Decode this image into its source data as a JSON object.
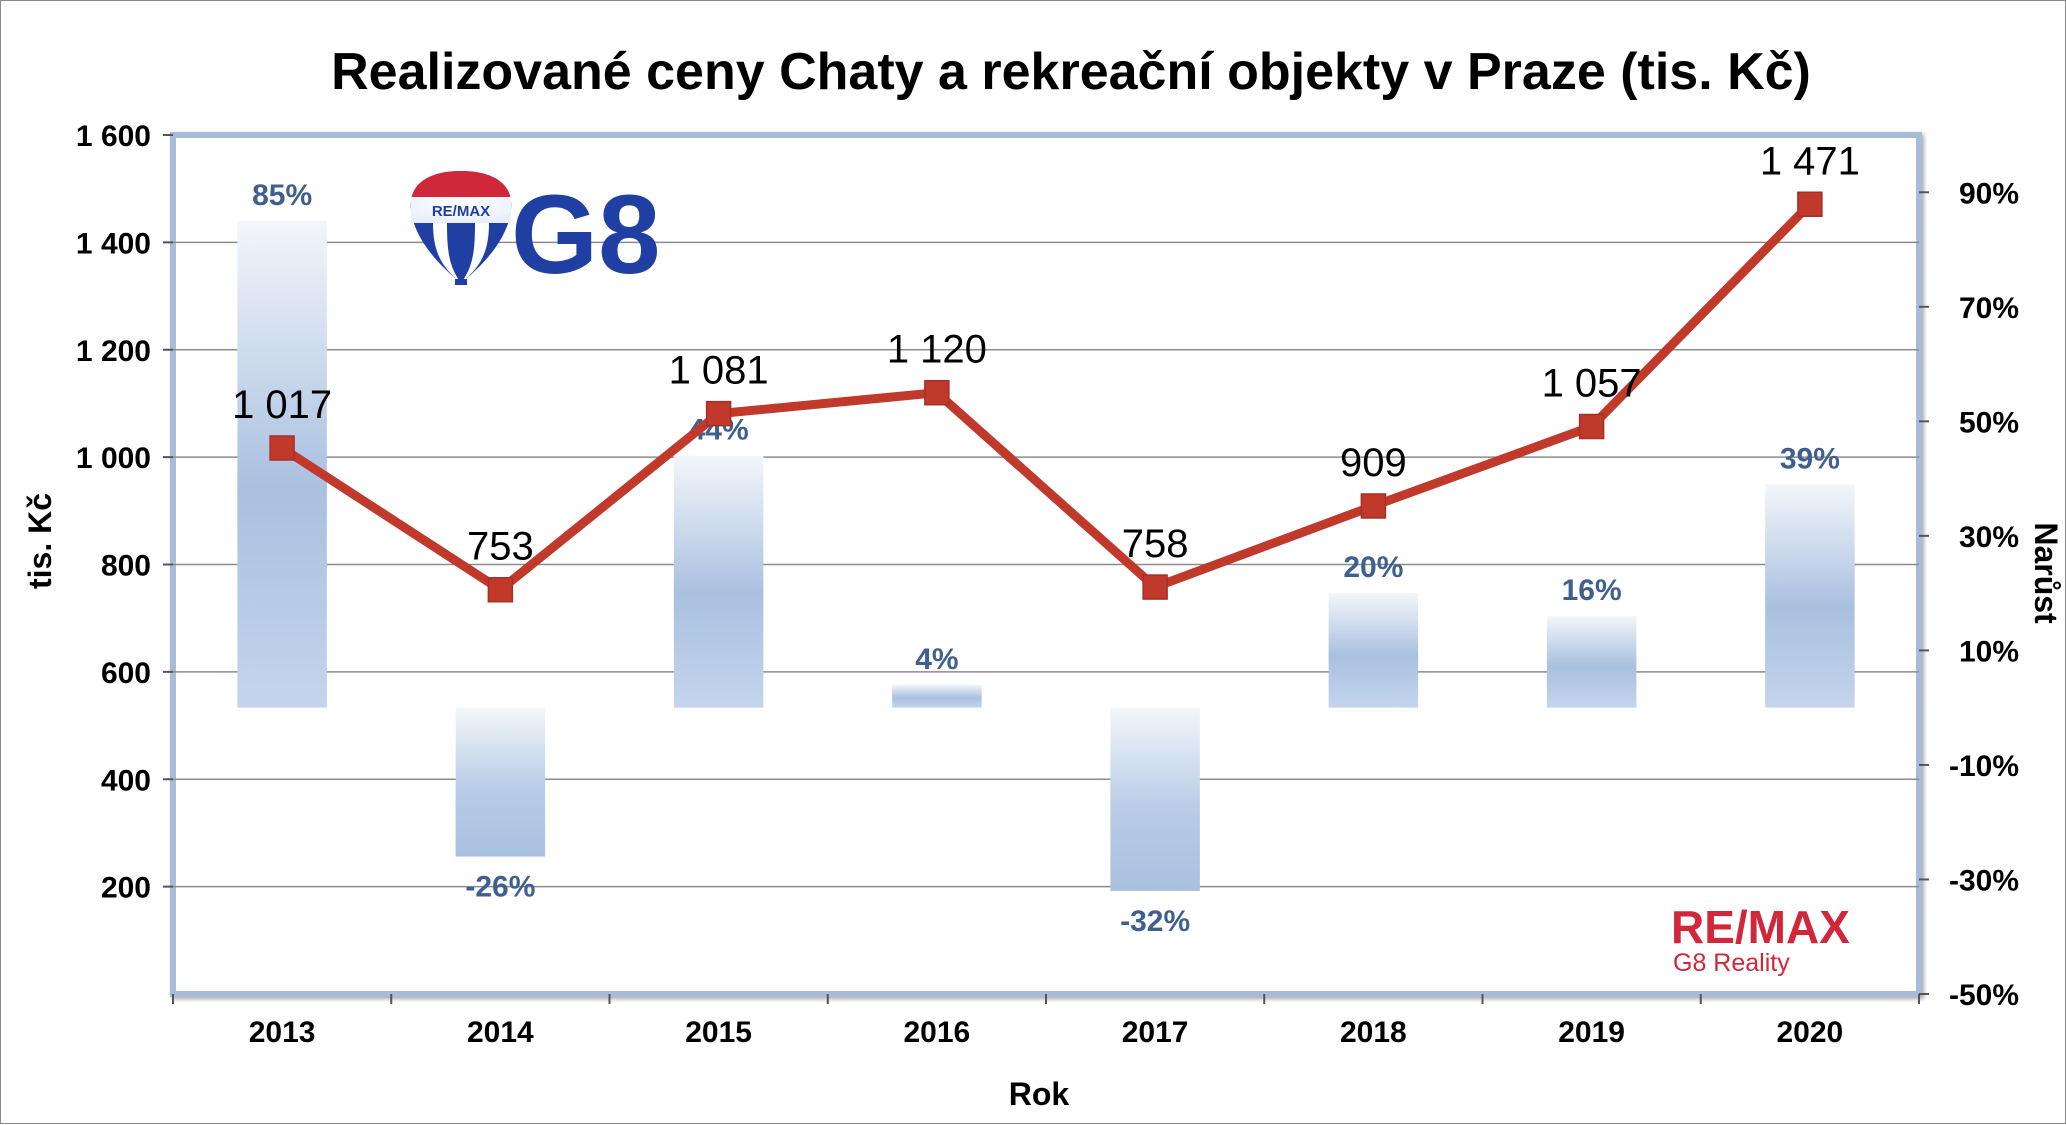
{
  "chart_data": {
    "type": "bar+line",
    "title": "Realizované ceny Chaty a rekreační objekty v Praze (tis. Kč)",
    "xlabel": "Rok",
    "ylabel_left": "tis. Kč",
    "ylabel_right": "Narůst",
    "categories": [
      "2013",
      "2014",
      "2015",
      "2016",
      "2017",
      "2018",
      "2019",
      "2020"
    ],
    "left_axis": {
      "ylim": [
        0,
        1600
      ],
      "ticks": [
        200,
        400,
        600,
        800,
        1000,
        1200,
        1400,
        1600
      ],
      "tick_labels": [
        "200",
        "400",
        "600",
        "800",
        "1 000",
        "1 200",
        "1 400",
        "1 600"
      ]
    },
    "right_axis": {
      "ylim": [
        -50,
        100
      ],
      "ticks": [
        -50,
        -30,
        -10,
        10,
        30,
        50,
        70,
        90
      ],
      "tick_labels": [
        "-50%",
        "-30%",
        "-10%",
        "10%",
        "30%",
        "50%",
        "70%",
        "90%"
      ]
    },
    "series": [
      {
        "type": "line",
        "axis": "left",
        "values": [
          1017,
          753,
          1081,
          1120,
          758,
          909,
          1057,
          1471
        ],
        "labels": [
          "1 017",
          "753",
          "1 081",
          "1 120",
          "758",
          "909",
          "1 057",
          "1 471"
        ],
        "color": "#c0392b"
      },
      {
        "type": "bar",
        "axis": "right",
        "values": [
          85,
          -26,
          44,
          4,
          -32,
          20,
          16,
          39
        ],
        "labels": [
          "85%",
          "-26%",
          "44%",
          "4%",
          "-32%",
          "20%",
          "16%",
          "39%"
        ],
        "color": "#a9c0e0"
      }
    ],
    "grid": true
  },
  "logos": {
    "balloon_text": "RE/MAX",
    "g8_text": "G8",
    "remax_wordmark": "RE/MAX",
    "remax_subtitle": "G8 Reality"
  },
  "colors": {
    "line": "#c0392b",
    "bar": "#a9c0e0",
    "brand_red": "#d0283a",
    "brand_blue": "#1f3fa3"
  }
}
